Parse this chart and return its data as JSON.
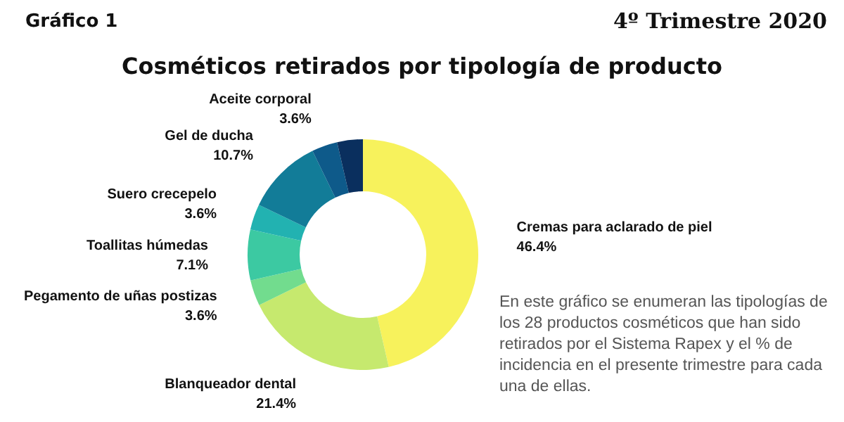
{
  "chart_data": {
    "type": "donut",
    "title": "Cosméticos retirados por tipología de producto",
    "categories": [
      "Cremas para aclarado de piel",
      "Blanqueador dental",
      "Pegamento de uñas postizas",
      "Toallitas húmedas",
      "Suero crecepelo",
      "Gel de ducha",
      "Aceite corporal",
      null
    ],
    "values": [
      46.4,
      21.4,
      3.6,
      7.1,
      3.6,
      10.7,
      3.6,
      3.6
    ],
    "value_labels": [
      "46.4%",
      "21.4%",
      "3.6%",
      "7.1%",
      "3.6%",
      "10.7%",
      "3.6%",
      null
    ],
    "colors": [
      "#f7f25c",
      "#c6e96e",
      "#72dc8e",
      "#3cc9a2",
      "#22b2b1",
      "#127c98",
      "#0e5a8a",
      "#0a2f5e"
    ],
    "legend": false,
    "annotations": [
      "Gráfico 1",
      "4º Trimestre 2020",
      "En este gráfico se enumeran las tipologías de los 28 productos cosméticos que han sido retirados por el Sistema Rapex y el % de incidencia en el presente trimestre para cada una de ellas."
    ]
  }
}
